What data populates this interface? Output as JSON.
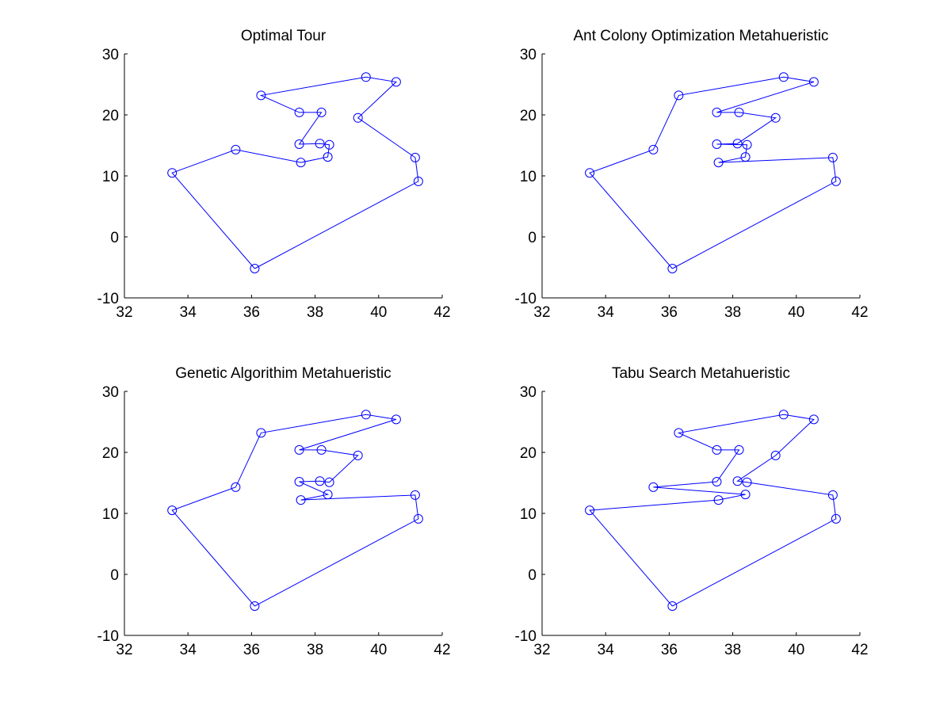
{
  "figure": {
    "background": "#ffffff",
    "line_color": "#0000ff",
    "axis_color": "#000000"
  },
  "chart_data": [
    {
      "type": "line",
      "title": "Optimal Tour",
      "xlim": [
        32,
        42
      ],
      "ylim": [
        -10,
        30
      ],
      "xticks": [
        32,
        34,
        36,
        38,
        40,
        42
      ],
      "yticks": [
        -10,
        0,
        10,
        20,
        30
      ],
      "xlabel": "",
      "ylabel": "",
      "grid": false,
      "markers": "circle",
      "x": [
        36.1,
        41.25,
        41.15,
        39.35,
        40.55,
        39.6,
        36.3,
        37.5,
        38.2,
        37.5,
        38.15,
        38.45,
        38.4,
        37.55,
        35.5,
        33.5,
        36.1
      ],
      "y": [
        -5.2,
        9.1,
        13.0,
        19.5,
        25.4,
        26.2,
        23.2,
        20.4,
        20.4,
        15.2,
        15.3,
        15.1,
        13.1,
        12.2,
        14.3,
        10.5,
        -5.2
      ]
    },
    {
      "type": "line",
      "title": "Ant Colony Optimization Metahueristic",
      "xlim": [
        32,
        42
      ],
      "ylim": [
        -10,
        30
      ],
      "xticks": [
        32,
        34,
        36,
        38,
        40,
        42
      ],
      "yticks": [
        -10,
        0,
        10,
        20,
        30
      ],
      "xlabel": "",
      "ylabel": "",
      "grid": false,
      "markers": "circle",
      "x": [
        36.1,
        41.25,
        41.15,
        37.55,
        38.4,
        38.45,
        37.5,
        38.15,
        39.35,
        38.2,
        37.5,
        40.55,
        39.6,
        36.3,
        35.5,
        33.5,
        36.1
      ],
      "y": [
        -5.2,
        9.1,
        13.0,
        12.2,
        13.1,
        15.1,
        15.2,
        15.3,
        19.5,
        20.4,
        20.4,
        25.4,
        26.2,
        23.2,
        14.3,
        10.5,
        -5.2
      ]
    },
    {
      "type": "line",
      "title": "Genetic Algorithim Metahueristic",
      "xlim": [
        32,
        42
      ],
      "ylim": [
        -10,
        30
      ],
      "xticks": [
        32,
        34,
        36,
        38,
        40,
        42
      ],
      "yticks": [
        -10,
        0,
        10,
        20,
        30
      ],
      "xlabel": "",
      "ylabel": "",
      "grid": false,
      "markers": "circle",
      "x": [
        36.1,
        41.25,
        41.15,
        37.55,
        38.4,
        37.5,
        38.15,
        38.45,
        39.35,
        38.2,
        37.5,
        40.55,
        39.6,
        36.3,
        35.5,
        33.5,
        36.1
      ],
      "y": [
        -5.2,
        9.1,
        13.0,
        12.2,
        13.1,
        15.2,
        15.3,
        15.1,
        19.5,
        20.4,
        20.4,
        25.4,
        26.2,
        23.2,
        14.3,
        10.5,
        -5.2
      ]
    },
    {
      "type": "line",
      "title": "Tabu Search Metahueristic",
      "xlim": [
        32,
        42
      ],
      "ylim": [
        -10,
        30
      ],
      "xticks": [
        32,
        34,
        36,
        38,
        40,
        42
      ],
      "yticks": [
        -10,
        0,
        10,
        20,
        30
      ],
      "xlabel": "",
      "ylabel": "",
      "grid": false,
      "markers": "circle",
      "x": [
        36.1,
        41.25,
        41.15,
        38.45,
        38.15,
        39.35,
        40.55,
        39.6,
        36.3,
        37.5,
        38.2,
        37.5,
        35.5,
        38.4,
        37.55,
        33.5,
        36.1
      ],
      "y": [
        -5.2,
        9.1,
        13.0,
        15.1,
        15.3,
        19.5,
        25.4,
        26.2,
        23.2,
        20.4,
        20.4,
        15.2,
        14.3,
        13.1,
        12.2,
        10.5,
        -5.2
      ]
    }
  ]
}
